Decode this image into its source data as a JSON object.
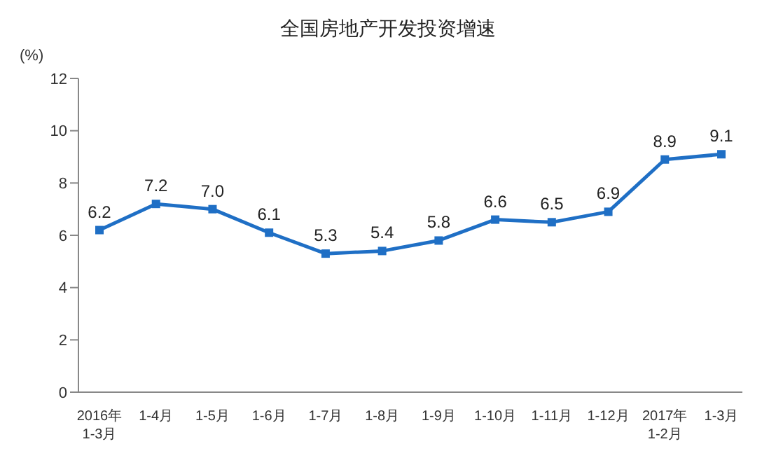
{
  "chart_data": {
    "type": "line",
    "title": "全国房地产开发投资增速",
    "ylabel": "(%)",
    "categories": [
      "2016年\n1-3月",
      "1-4月",
      "1-5月",
      "1-6月",
      "1-7月",
      "1-8月",
      "1-9月",
      "1-10月",
      "1-11月",
      "1-12月",
      "2017年\n1-2月",
      "1-3月"
    ],
    "series": [
      {
        "color": "#1f6fc5",
        "values": [
          6.2,
          7.2,
          7.0,
          6.1,
          5.3,
          5.4,
          5.8,
          6.6,
          6.5,
          6.9,
          8.9,
          9.1
        ],
        "value_labels": [
          "6.2",
          "7.2",
          "7.0",
          "6.1",
          "5.3",
          "5.4",
          "5.8",
          "6.6",
          "6.5",
          "6.9",
          "8.9",
          "9.1"
        ]
      }
    ],
    "ylim": [
      0,
      12
    ],
    "yticks": [
      0,
      2,
      4,
      6,
      8,
      10,
      12
    ],
    "grid": false,
    "legend": false,
    "marker": "square",
    "line_style": "solid"
  }
}
